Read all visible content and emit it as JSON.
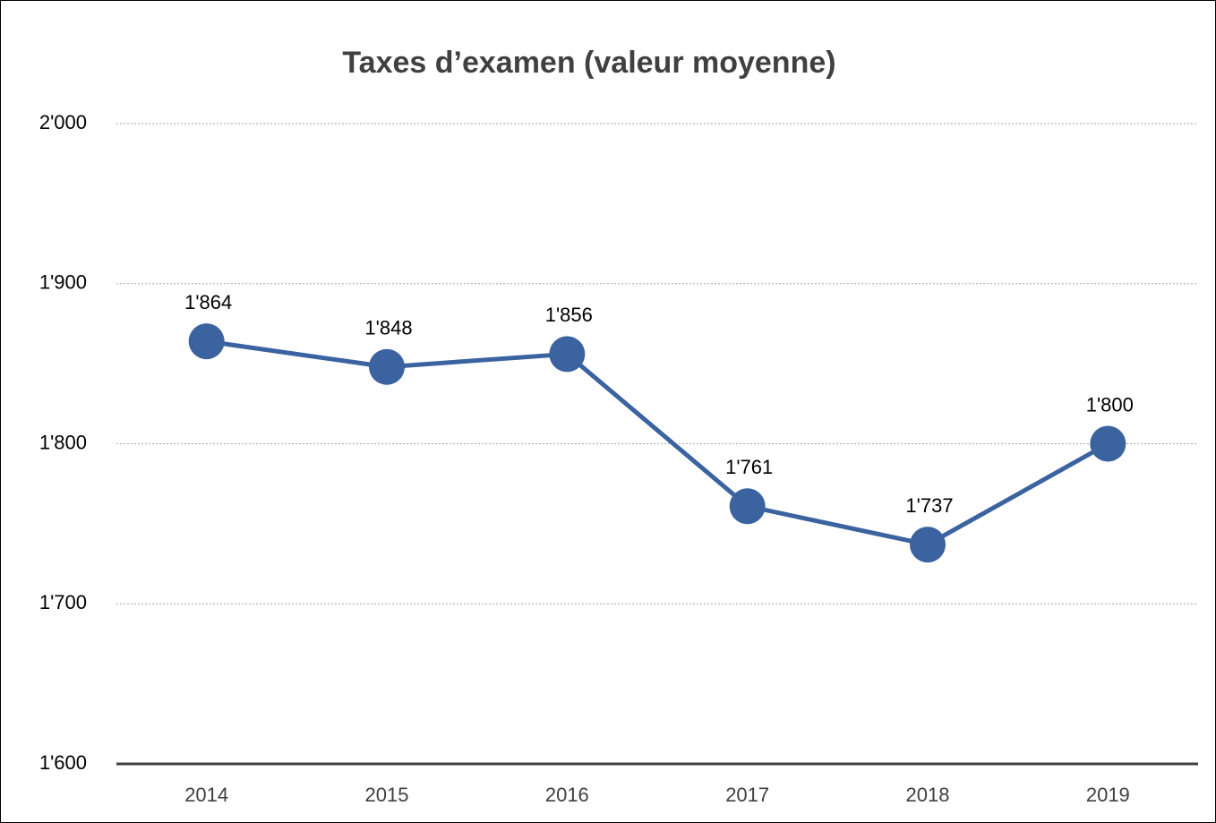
{
  "chart_data": {
    "type": "line",
    "title": "Taxes d’examen (valeur moyenne)",
    "categories": [
      "2014",
      "2015",
      "2016",
      "2017",
      "2018",
      "2019"
    ],
    "series": [
      {
        "name": "Taxes d’examen",
        "color": "#3b63a0",
        "values": [
          1864,
          1848,
          1856,
          1761,
          1737,
          1800
        ],
        "value_labels": [
          "1'864",
          "1'848",
          "1'856",
          "1'761",
          "1'737",
          "1'800"
        ]
      }
    ],
    "ylim": [
      1600,
      2000
    ],
    "yticks": [
      {
        "value": 1600,
        "label": "1'600"
      },
      {
        "value": 1700,
        "label": "1'700"
      },
      {
        "value": 1800,
        "label": "1'800"
      },
      {
        "value": 1900,
        "label": "1'900"
      },
      {
        "value": 2000,
        "label": "2'000"
      }
    ],
    "grid": true
  }
}
